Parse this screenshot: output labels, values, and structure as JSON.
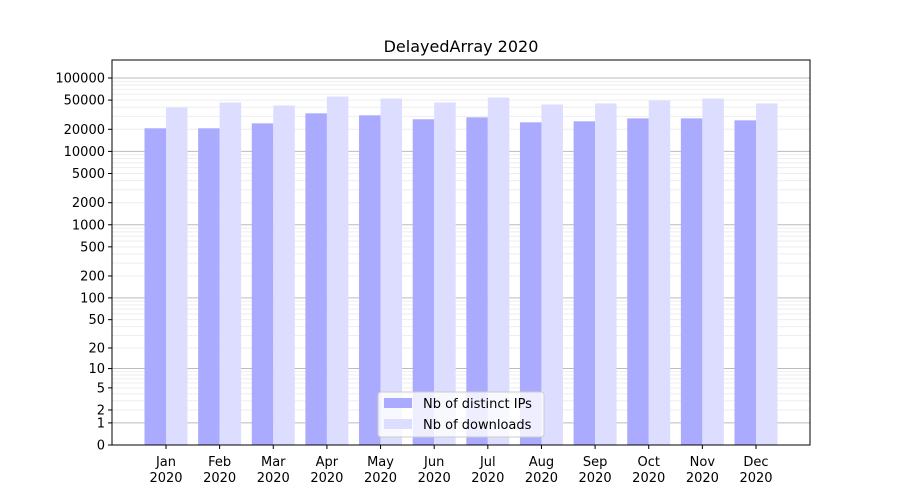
{
  "chart_data": {
    "type": "bar",
    "title": "DelayedArray 2020",
    "xlabel": "",
    "ylabel": "",
    "yscale": "symlog",
    "ylim": [
      0,
      150000
    ],
    "grid": true,
    "legend_placement": "bottom-center",
    "categories": [
      "Jan\n2020",
      "Feb\n2020",
      "Mar\n2020",
      "Apr\n2020",
      "May\n2020",
      "Jun\n2020",
      "Jul\n2020",
      "Aug\n2020",
      "Sep\n2020",
      "Oct\n2020",
      "Nov\n2020",
      "Dec\n2020"
    ],
    "yticks": [
      0,
      1,
      2,
      5,
      10,
      20,
      50,
      100,
      200,
      500,
      1000,
      2000,
      5000,
      10000,
      20000,
      50000,
      100000
    ],
    "series": [
      {
        "name": "Nb of distinct IPs",
        "color": "#aaaaff",
        "values": [
          20650,
          20650,
          24100,
          33000,
          31000,
          27400,
          29100,
          24900,
          25700,
          28200,
          28200,
          26500
        ]
      },
      {
        "name": "Nb of downloads",
        "color": "#ddddff",
        "values": [
          39700,
          46400,
          42300,
          55900,
          52500,
          46400,
          54200,
          43600,
          45000,
          49300,
          52500,
          45000
        ]
      }
    ]
  }
}
